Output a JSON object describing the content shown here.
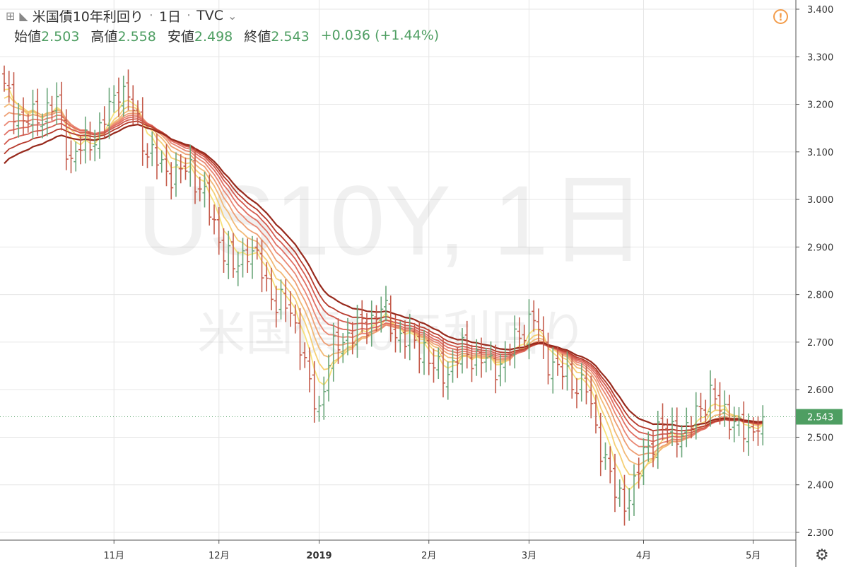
{
  "header": {
    "symbol_title": "米国債10年利回り",
    "interval": "1日",
    "source": "TVC",
    "open_label": "始値",
    "open_value": "2.503",
    "high_label": "高値",
    "high_value": "2.558",
    "low_label": "安値",
    "low_value": "2.498",
    "close_label": "終値",
    "close_value": "2.543",
    "change": "+0.036",
    "change_pct": "(+1.44%)"
  },
  "watermark": {
    "line1": "US10Y, 1日",
    "line2": "米国債10年利回り"
  },
  "colors": {
    "up": "#6aa67a",
    "down": "#c45a4a",
    "ribbon": [
      "#f7e27a",
      "#f5cf74",
      "#f2b976",
      "#ee9f74",
      "#e98672",
      "#e06e62",
      "#d35a4e",
      "#b63a2c",
      "#97291c"
    ],
    "last_price_bg": "#4e9e62"
  },
  "chart_data": {
    "type": "ohlc",
    "title": "米国債10年利回り",
    "ylim": [
      2.28,
      3.43
    ],
    "y_ticks": [
      "3.400",
      "3.300",
      "3.200",
      "3.100",
      "3.000",
      "2.900",
      "2.800",
      "2.700",
      "2.600",
      "2.500",
      "2.400",
      "2.300"
    ],
    "x_ticks": [
      {
        "label": "11月",
        "day": 23
      },
      {
        "label": "12月",
        "day": 45
      },
      {
        "label": "2019",
        "day": 66
      },
      {
        "label": "2月",
        "day": 89
      },
      {
        "label": "3月",
        "day": 110
      },
      {
        "label": "4月",
        "day": 134
      },
      {
        "label": "5月",
        "day": 157
      }
    ],
    "last_price": "2.543",
    "close_anchors": [
      [
        0,
        3.23
      ],
      [
        4,
        3.16
      ],
      [
        8,
        3.18
      ],
      [
        11,
        3.2
      ],
      [
        14,
        3.08
      ],
      [
        17,
        3.12
      ],
      [
        20,
        3.14
      ],
      [
        24,
        3.24
      ],
      [
        27,
        3.19
      ],
      [
        30,
        3.1
      ],
      [
        33,
        3.07
      ],
      [
        36,
        3.05
      ],
      [
        39,
        3.07
      ],
      [
        42,
        3.0
      ],
      [
        45,
        2.92
      ],
      [
        48,
        2.85
      ],
      [
        51,
        2.9
      ],
      [
        54,
        2.85
      ],
      [
        57,
        2.78
      ],
      [
        60,
        2.77
      ],
      [
        62,
        2.7
      ],
      [
        64,
        2.6
      ],
      [
        66,
        2.56
      ],
      [
        68,
        2.66
      ],
      [
        71,
        2.71
      ],
      [
        73,
        2.72
      ],
      [
        76,
        2.74
      ],
      [
        79,
        2.77
      ],
      [
        82,
        2.72
      ],
      [
        85,
        2.7
      ],
      [
        88,
        2.69
      ],
      [
        90,
        2.64
      ],
      [
        93,
        2.64
      ],
      [
        96,
        2.68
      ],
      [
        99,
        2.67
      ],
      [
        102,
        2.65
      ],
      [
        105,
        2.66
      ],
      [
        108,
        2.72
      ],
      [
        111,
        2.75
      ],
      [
        113,
        2.68
      ],
      [
        116,
        2.64
      ],
      [
        119,
        2.62
      ],
      [
        122,
        2.6
      ],
      [
        124,
        2.52
      ],
      [
        126,
        2.45
      ],
      [
        128,
        2.38
      ],
      [
        130,
        2.37
      ],
      [
        132,
        2.39
      ],
      [
        134,
        2.47
      ],
      [
        137,
        2.51
      ],
      [
        140,
        2.52
      ],
      [
        143,
        2.5
      ],
      [
        145,
        2.56
      ],
      [
        148,
        2.58
      ],
      [
        151,
        2.56
      ],
      [
        154,
        2.51
      ],
      [
        157,
        2.52
      ],
      [
        159,
        2.543
      ]
    ],
    "ema_periods": [
      5,
      8,
      11,
      14,
      17,
      20,
      23,
      26,
      30
    ]
  }
}
